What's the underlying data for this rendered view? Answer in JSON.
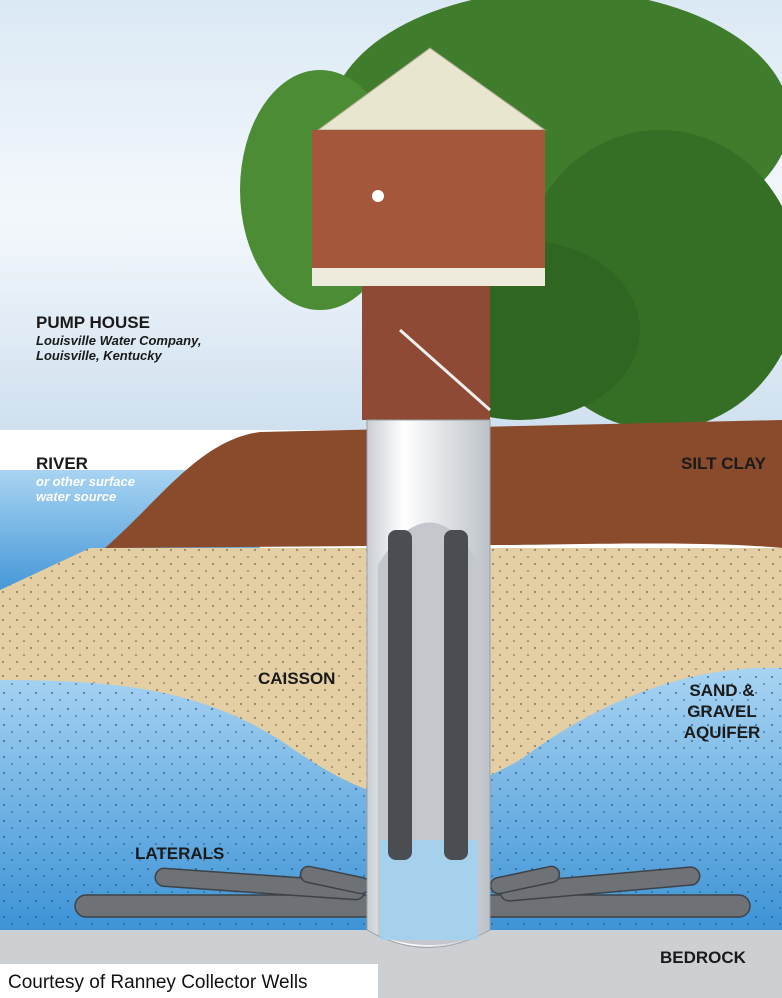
{
  "labels": {
    "pump_house": {
      "title": "PUMP HOUSE",
      "lines": [
        "Louisville Water Company,",
        "Louisville, Kentucky"
      ]
    },
    "river": {
      "title": "RIVER",
      "lines": [
        "or other surface",
        "water source"
      ]
    },
    "silt_clay": "SILT CLAY",
    "caisson": "CAISSON",
    "aquifer": [
      "SAND &",
      "GRAVEL",
      "AQUIFER"
    ],
    "laterals": "LATERALS",
    "bedrock": "BEDROCK"
  },
  "caption": "Courtesy of Ranney Collector Wells"
}
